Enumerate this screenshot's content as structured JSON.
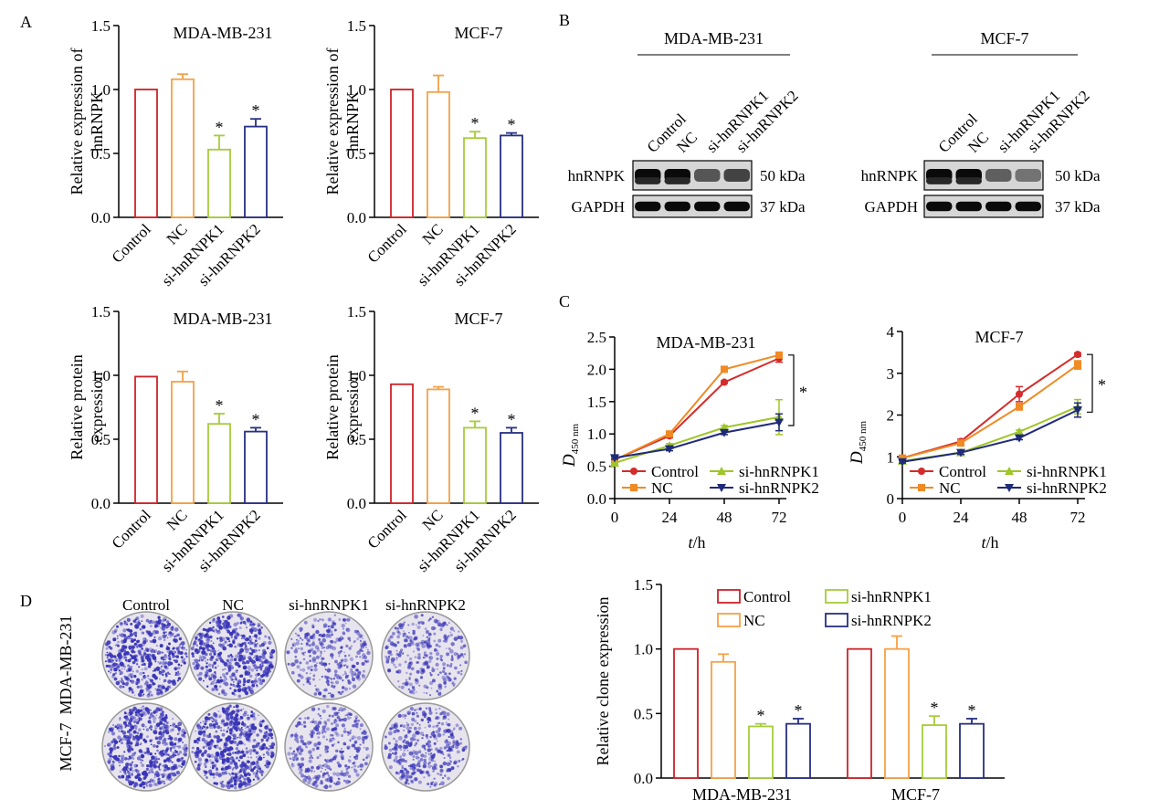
{
  "panel_labels": {
    "a": "A",
    "b": "B",
    "c": "C",
    "d": "D"
  },
  "colors": {
    "control": "#cc2229",
    "nc": "#f4a147",
    "si1": "#a6cc3b",
    "si2": "#262f82",
    "line_control": "#d42b2b",
    "line_nc": "#f08a24",
    "line_si1": "#9ec627",
    "line_si2": "#1f2a7a",
    "dish_stain": "#3a36b8",
    "dish_bg": "#e7e4ee"
  },
  "panel_a": {
    "categories": [
      "Control",
      "NC",
      "si-hnRNPK1",
      "si-hnRNPK2"
    ],
    "star": "*",
    "charts": [
      {
        "title": "MDA-MB-231",
        "ylabel_lines": [
          "Relative expression of",
          "hnRNPK"
        ],
        "yticks": [
          "0.0",
          "0.5",
          "1.0",
          "1.5"
        ]
      },
      {
        "title": "MCF-7",
        "ylabel_lines": [
          "Relative expression of",
          "hnRNPK"
        ],
        "yticks": [
          "0.0",
          "0.5",
          "1.0",
          "1.5"
        ]
      },
      {
        "title": "MDA-MB-231",
        "ylabel_lines": [
          "Relative protein",
          "expression"
        ],
        "yticks": [
          "0.0",
          "0.5",
          "1.0",
          "1.5"
        ]
      },
      {
        "title": "MCF-7",
        "ylabel_lines": [
          "Relative protein",
          "expression"
        ],
        "yticks": [
          "0.0",
          "0.5",
          "1.0",
          "1.5"
        ]
      }
    ]
  },
  "panel_b": {
    "blots": [
      {
        "cell_line": "MDA-MB-231",
        "lanes": [
          "Control",
          "NC",
          "si-hnRNPK1",
          "si-hnRNPK2"
        ],
        "rows": [
          {
            "name": "hnRNPK",
            "kda": "50 kDa"
          },
          {
            "name": "GAPDH",
            "kda": "37 kDa"
          }
        ],
        "hnrnpk_intensity": [
          1.0,
          1.0,
          0.6,
          0.7
        ]
      },
      {
        "cell_line": "MCF-7",
        "lanes": [
          "Control",
          "NC",
          "si-hnRNPK1",
          "si-hnRNPK2"
        ],
        "rows": [
          {
            "name": "hnRNPK",
            "kda": "50 kDa"
          },
          {
            "name": "GAPDH",
            "kda": "37 kDa"
          }
        ],
        "hnrnpk_intensity": [
          1.0,
          1.0,
          0.55,
          0.45
        ]
      }
    ]
  },
  "panel_c": {
    "xlabel_var": "t",
    "xlabel_unit": "/h",
    "ylabel_var": "D",
    "ylabel_sub": "450 nm",
    "star": "*",
    "legend": [
      "Control",
      "NC",
      "si-hnRNPK1",
      "si-hnRNPK2"
    ]
  },
  "panel_d": {
    "column_labels": [
      "Control",
      "NC",
      "si-hnRNPK1",
      "si-hnRNPK2"
    ],
    "row_labels": [
      "MDA-MB-231",
      "MCF-7"
    ],
    "stain_density": [
      [
        0.85,
        0.8,
        0.35,
        0.3
      ],
      [
        0.85,
        0.95,
        0.4,
        0.45
      ]
    ]
  },
  "chart_data": [
    {
      "type": "bar",
      "title": "MDA-MB-231",
      "xlabel": "",
      "ylabel": "Relative expression of hnRNPK",
      "categories": [
        "Control",
        "NC",
        "si-hnRNPK1",
        "si-hnRNPK2"
      ],
      "values": [
        1.0,
        1.08,
        0.53,
        0.71
      ],
      "errors": [
        0,
        0.04,
        0.11,
        0.06
      ],
      "significance": [
        false,
        false,
        true,
        true
      ],
      "ylim": [
        0,
        1.5
      ],
      "yticks": [
        0,
        0.5,
        1.0,
        1.5
      ]
    },
    {
      "type": "bar",
      "title": "MCF-7",
      "xlabel": "",
      "ylabel": "Relative expression of hnRNPK",
      "categories": [
        "Control",
        "NC",
        "si-hnRNPK1",
        "si-hnRNPK2"
      ],
      "values": [
        1.0,
        0.98,
        0.62,
        0.64
      ],
      "errors": [
        0,
        0.13,
        0.05,
        0.02
      ],
      "significance": [
        false,
        false,
        true,
        true
      ],
      "ylim": [
        0,
        1.5
      ],
      "yticks": [
        0,
        0.5,
        1.0,
        1.5
      ]
    },
    {
      "type": "bar",
      "title": "MDA-MB-231",
      "xlabel": "",
      "ylabel": "Relative protein expression",
      "categories": [
        "Control",
        "NC",
        "si-hnRNPK1",
        "si-hnRNPK2"
      ],
      "values": [
        0.99,
        0.95,
        0.62,
        0.56
      ],
      "errors": [
        0,
        0.08,
        0.08,
        0.03
      ],
      "significance": [
        false,
        false,
        true,
        true
      ],
      "ylim": [
        0,
        1.5
      ],
      "yticks": [
        0,
        0.5,
        1.0,
        1.5
      ]
    },
    {
      "type": "bar",
      "title": "MCF-7",
      "xlabel": "",
      "ylabel": "Relative protein expression",
      "categories": [
        "Control",
        "NC",
        "si-hnRNPK1",
        "si-hnRNPK2"
      ],
      "values": [
        0.93,
        0.89,
        0.59,
        0.55
      ],
      "errors": [
        0,
        0.02,
        0.05,
        0.04
      ],
      "significance": [
        false,
        false,
        true,
        true
      ],
      "ylim": [
        0,
        1.5
      ],
      "yticks": [
        0,
        0.5,
        1.0,
        1.5
      ]
    },
    {
      "type": "line",
      "title": "MDA-MB-231",
      "xlabel": "t/h",
      "ylabel": "D450 nm",
      "x": [
        0,
        24,
        48,
        72
      ],
      "xlim": [
        0,
        72
      ],
      "ylim": [
        0,
        2.5
      ],
      "yticks": [
        0,
        0.5,
        1.0,
        1.5,
        2.0,
        2.5
      ],
      "series": [
        {
          "name": "Control",
          "values": [
            0.6,
            0.97,
            1.8,
            2.17
          ],
          "errors": [
            0.02,
            0.03,
            0.02,
            0.06
          ],
          "marker": "circle"
        },
        {
          "name": "NC",
          "values": [
            0.6,
            1.0,
            2.0,
            2.22
          ],
          "errors": [
            0.02,
            0.03,
            0.03,
            0.03
          ],
          "marker": "square"
        },
        {
          "name": "si-hnRNPK1",
          "values": [
            0.55,
            0.82,
            1.1,
            1.26
          ],
          "errors": [
            0.02,
            0.03,
            0.03,
            0.27
          ],
          "marker": "triangle-up"
        },
        {
          "name": "si-hnRNPK2",
          "values": [
            0.63,
            0.77,
            1.02,
            1.18
          ],
          "errors": [
            0.02,
            0.03,
            0.03,
            0.13
          ],
          "marker": "triangle-down"
        }
      ],
      "significance_bracket": "*"
    },
    {
      "type": "line",
      "title": "MCF-7",
      "xlabel": "t/h",
      "ylabel": "D450 nm",
      "x": [
        0,
        24,
        48,
        72
      ],
      "xlim": [
        0,
        72
      ],
      "ylim": [
        0,
        4
      ],
      "yticks": [
        0,
        1,
        2,
        3,
        4
      ],
      "series": [
        {
          "name": "Control",
          "values": [
            0.97,
            1.37,
            2.5,
            3.45
          ],
          "errors": [
            0.03,
            0.05,
            0.18,
            0.04
          ],
          "marker": "circle"
        },
        {
          "name": "NC",
          "values": [
            0.97,
            1.33,
            2.2,
            3.2
          ],
          "errors": [
            0.03,
            0.05,
            0.08,
            0.1
          ],
          "marker": "square"
        },
        {
          "name": "si-hnRNPK1",
          "values": [
            0.9,
            1.1,
            1.6,
            2.2
          ],
          "errors": [
            0.03,
            0.04,
            0.04,
            0.17
          ],
          "marker": "triangle-up"
        },
        {
          "name": "si-hnRNPK2",
          "values": [
            0.88,
            1.1,
            1.45,
            2.12
          ],
          "errors": [
            0.03,
            0.04,
            0.04,
            0.17
          ],
          "marker": "triangle-down"
        }
      ],
      "significance_bracket": "*"
    },
    {
      "type": "bar",
      "title": "",
      "xlabel": "",
      "ylabel": "Relative clone expression",
      "categories": [
        "MDA-MB-231",
        "MCF-7"
      ],
      "ylim": [
        0,
        1.5
      ],
      "yticks": [
        0,
        0.5,
        1.0,
        1.5
      ],
      "series": [
        {
          "name": "Control",
          "values": [
            1.0,
            1.0
          ],
          "errors": [
            0,
            0
          ]
        },
        {
          "name": "NC",
          "values": [
            0.9,
            1.0
          ],
          "errors": [
            0.06,
            0.1
          ]
        },
        {
          "name": "si-hnRNPK1",
          "values": [
            0.4,
            0.41
          ],
          "errors": [
            0.02,
            0.07
          ]
        },
        {
          "name": "si-hnRNPK2",
          "values": [
            0.42,
            0.42
          ],
          "errors": [
            0.04,
            0.04
          ]
        }
      ],
      "significance": [
        false,
        false,
        true,
        true
      ]
    }
  ]
}
